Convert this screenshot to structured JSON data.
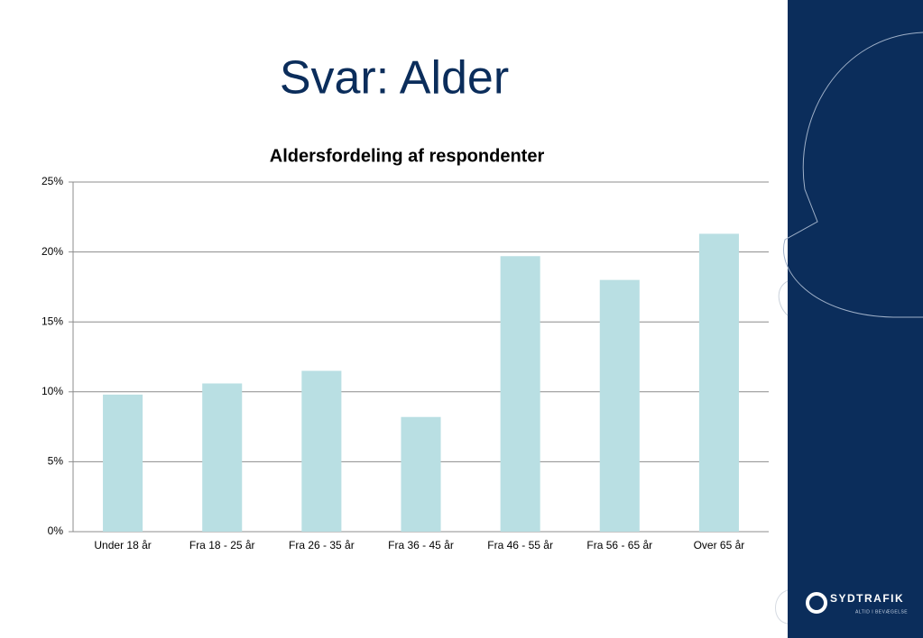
{
  "title": "Svar: Alder",
  "logo": {
    "name": "SYDTRAFIK",
    "tagline": "ALTID I BEVÆGELSE"
  },
  "chart_data": {
    "type": "bar",
    "title": "Aldersfordeling af respondenter",
    "categories": [
      "Under 18 år",
      "Fra 18 - 25 år",
      "Fra 26 - 35 år",
      "Fra 36 - 45 år",
      "Fra 46 - 55 år",
      "Fra 56 - 65 år",
      "Over 65 år"
    ],
    "values": [
      9.8,
      10.6,
      11.5,
      8.2,
      19.7,
      18.0,
      21.3
    ],
    "color": "#b9dfe3",
    "ylim": [
      0,
      25
    ],
    "yticks": [
      {
        "value": 0,
        "label": "0%"
      },
      {
        "value": 5,
        "label": "5%"
      },
      {
        "value": 10,
        "label": "10%"
      },
      {
        "value": 15,
        "label": "15%"
      },
      {
        "value": 20,
        "label": "20%"
      },
      {
        "value": 25,
        "label": "25%"
      }
    ],
    "grid": true
  }
}
